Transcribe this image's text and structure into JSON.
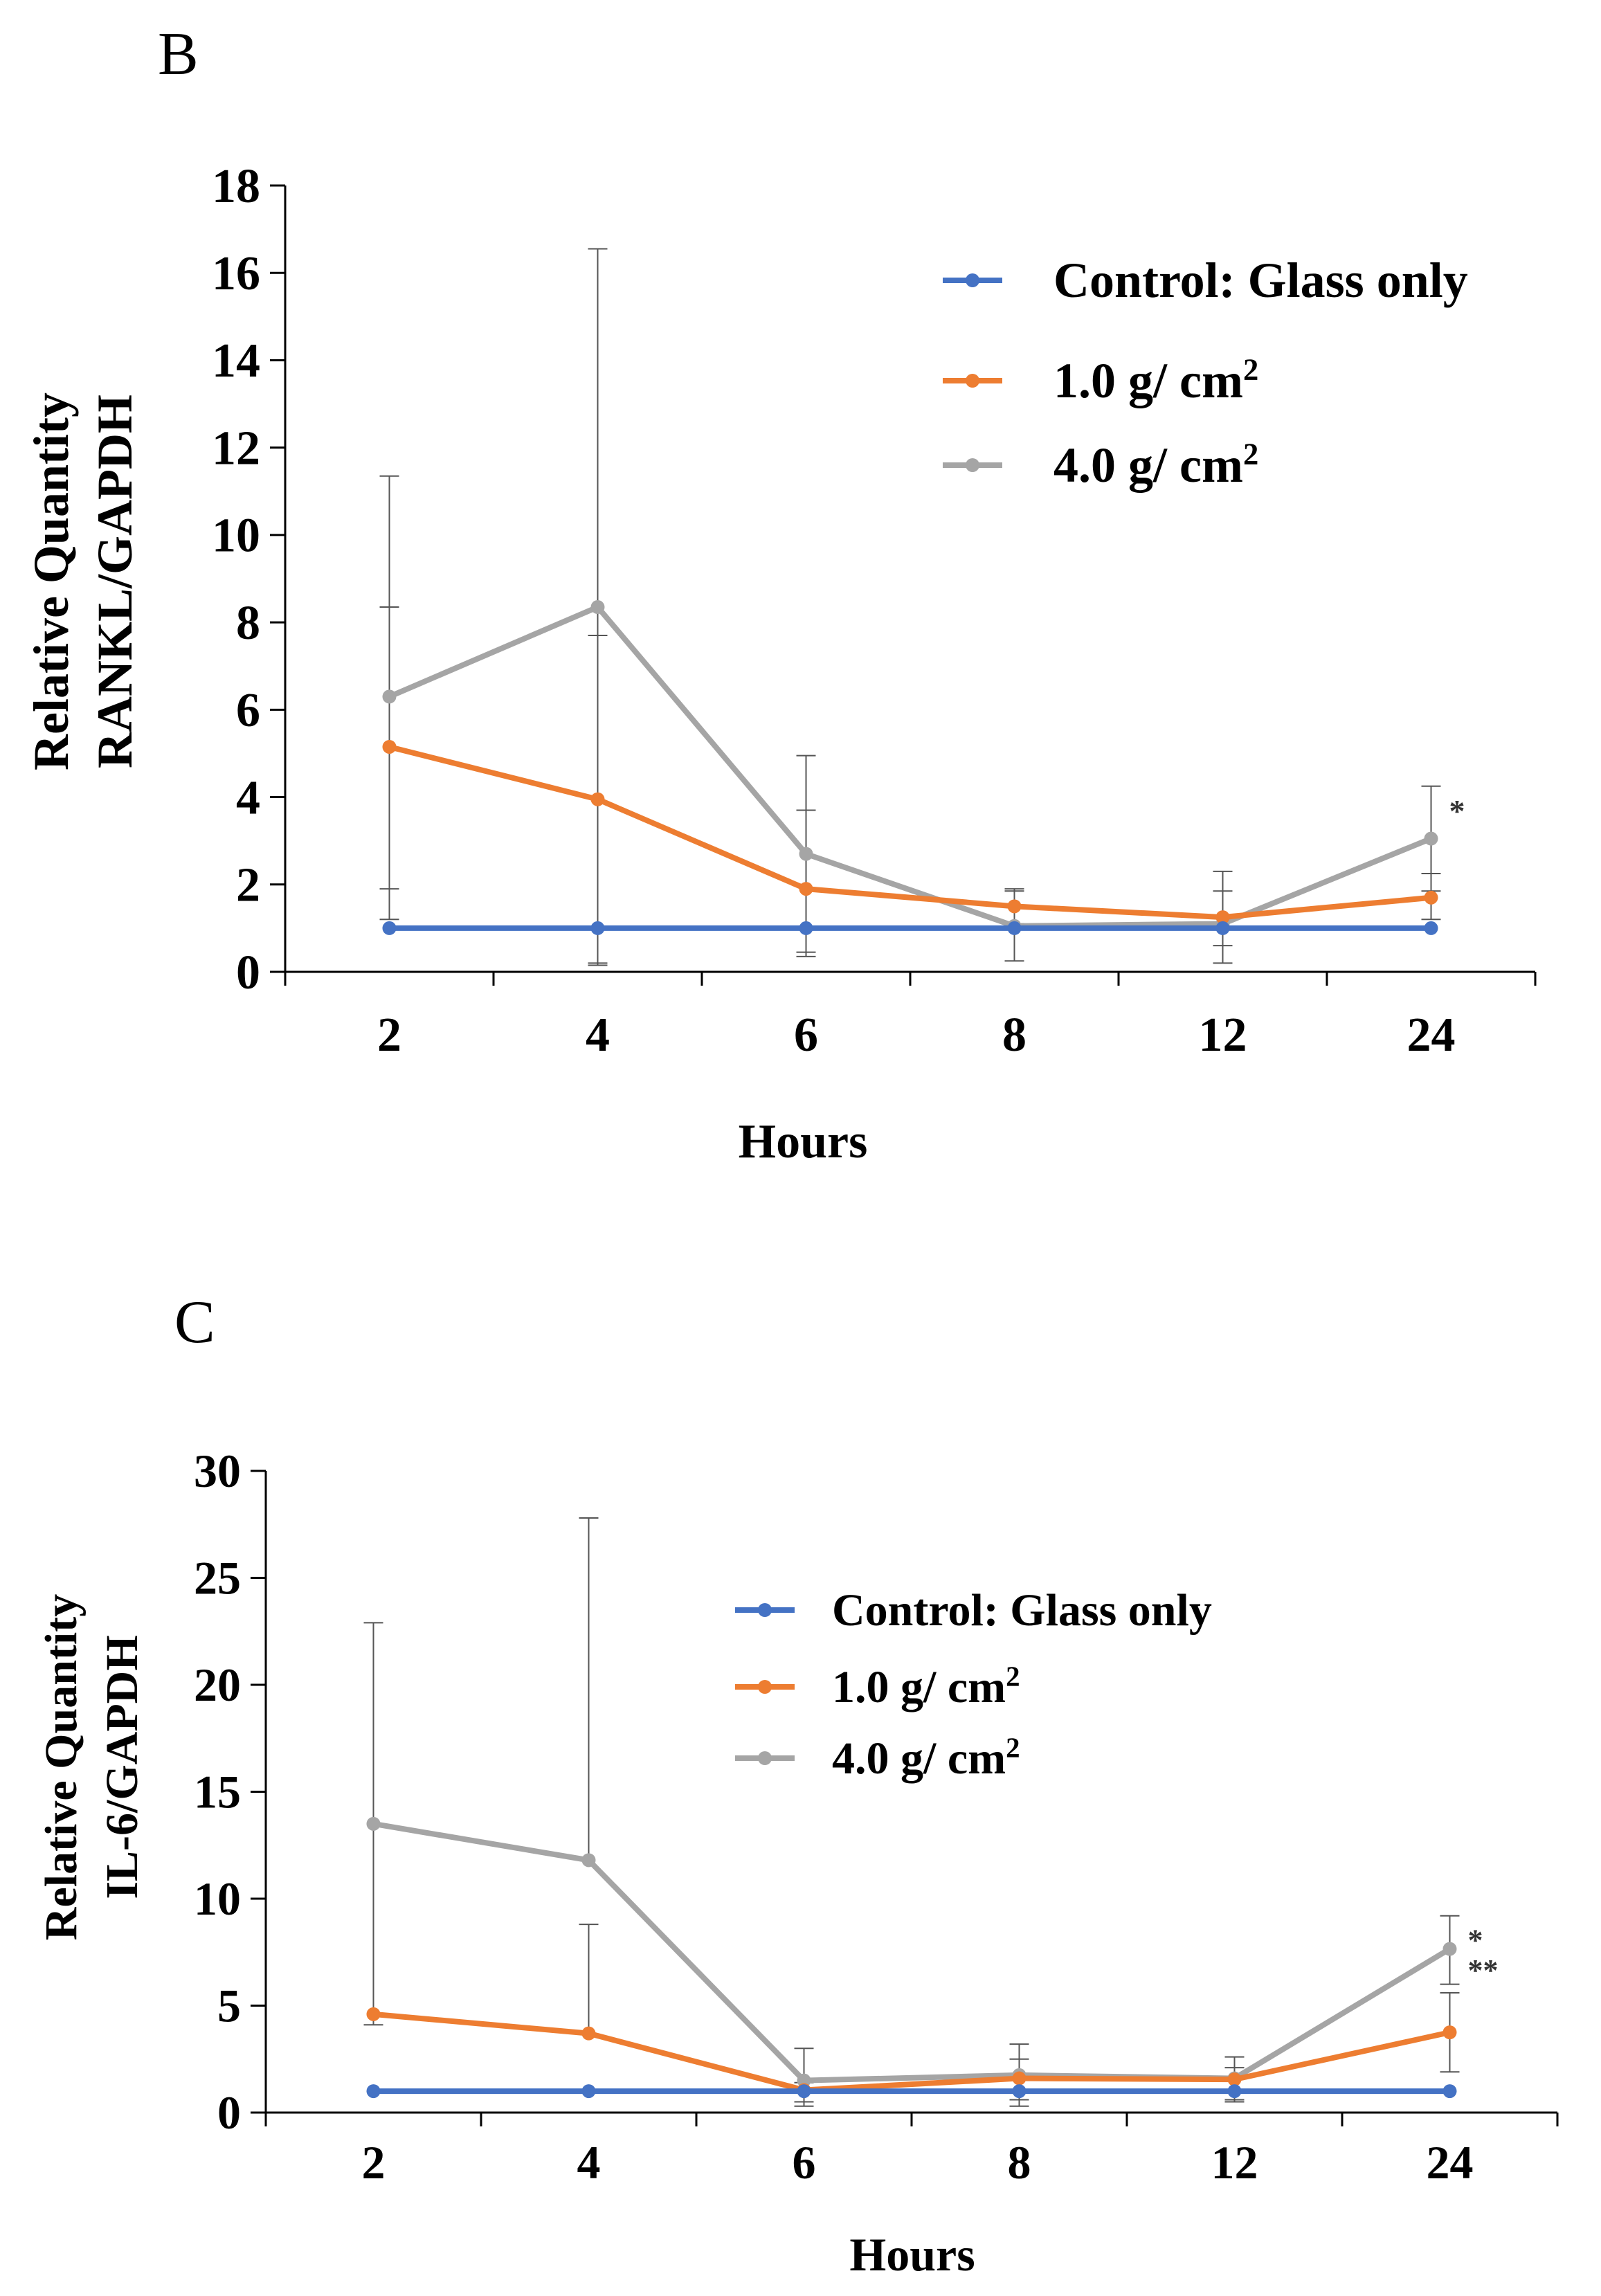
{
  "panels": [
    {
      "letter": "B",
      "chart_data": {
        "type": "line",
        "categories": [
          "2",
          "4",
          "6",
          "8",
          "12",
          "24"
        ],
        "xlabel": "Hours",
        "ylabel": [
          "Relative Quantity",
          "RANKL/GAPDH"
        ],
        "ylim": [
          0,
          18
        ],
        "yticks": [
          0,
          2,
          4,
          6,
          8,
          10,
          12,
          14,
          16,
          18
        ],
        "grid": false,
        "legend": "top-right",
        "series": [
          {
            "name": "Control: Glass only",
            "color": "#4472C4",
            "values": [
              1,
              1,
              1,
              1,
              1,
              1
            ],
            "err_low": [
              null,
              null,
              null,
              null,
              null,
              null
            ],
            "err_high": [
              null,
              null,
              null,
              null,
              null,
              null
            ]
          },
          {
            "name": "1.0 g/ cm",
            "sup": "2",
            "color": "#ED7D31",
            "values": [
              5.15,
              3.95,
              1.9,
              1.5,
              1.25,
              1.7
            ],
            "err_low": [
              1.9,
              0.2,
              0.35,
              1.1,
              0.6,
              1.2
            ],
            "err_high": [
              8.35,
              7.7,
              3.7,
              1.9,
              1.85,
              2.25
            ]
          },
          {
            "name": "4.0 g/ cm",
            "sup": "2",
            "color": "#A5A5A5",
            "values": [
              6.3,
              8.35,
              2.7,
              1.05,
              1.1,
              3.05
            ],
            "err_low": [
              1.2,
              0.15,
              0.45,
              0.25,
              0.2,
              1.85
            ],
            "err_high": [
              11.35,
              16.55,
              4.95,
              1.85,
              2.3,
              4.25
            ]
          }
        ],
        "annotations": [
          {
            "text": "*",
            "category": "24",
            "y": 3.8
          }
        ]
      }
    },
    {
      "letter": "C",
      "chart_data": {
        "type": "line",
        "categories": [
          "2",
          "4",
          "6",
          "8",
          "12",
          "24"
        ],
        "xlabel": "Hours",
        "ylabel": [
          "Relative Quantity",
          "IL-6/GAPDH"
        ],
        "ylim": [
          0,
          30
        ],
        "yticks": [
          0,
          5,
          10,
          15,
          20,
          25,
          30
        ],
        "grid": false,
        "legend": "top-center",
        "series": [
          {
            "name": "Control: Glass only",
            "color": "#4472C4",
            "values": [
              1,
              1,
              1,
              1,
              1,
              1
            ],
            "err_low": [
              null,
              null,
              null,
              null,
              null,
              null
            ],
            "err_high": [
              null,
              null,
              null,
              null,
              null,
              null
            ]
          },
          {
            "name": "1.0 g/ cm",
            "sup": "2",
            "color": "#ED7D31",
            "values": [
              4.6,
              3.7,
              1.05,
              1.6,
              1.55,
              3.75
            ],
            "err_low": [
              null,
              null,
              0.3,
              0.6,
              0.6,
              1.9
            ],
            "err_high": [
              null,
              8.8,
              1.4,
              2.5,
              2.1,
              5.6
            ]
          },
          {
            "name": "4.0 g/ cm",
            "sup": "2",
            "color": "#A5A5A5",
            "values": [
              13.5,
              11.8,
              1.5,
              1.75,
              1.6,
              7.65
            ],
            "err_low": [
              4.1,
              null,
              0.5,
              0.3,
              0.5,
              6.0
            ],
            "err_high": [
              22.9,
              27.8,
              3.0,
              3.2,
              2.6,
              9.2
            ]
          }
        ],
        "annotations": [
          {
            "text": "*",
            "category": "24",
            "y": 8.3
          },
          {
            "text": "**",
            "category": "24",
            "y": 6.9
          }
        ]
      }
    }
  ]
}
